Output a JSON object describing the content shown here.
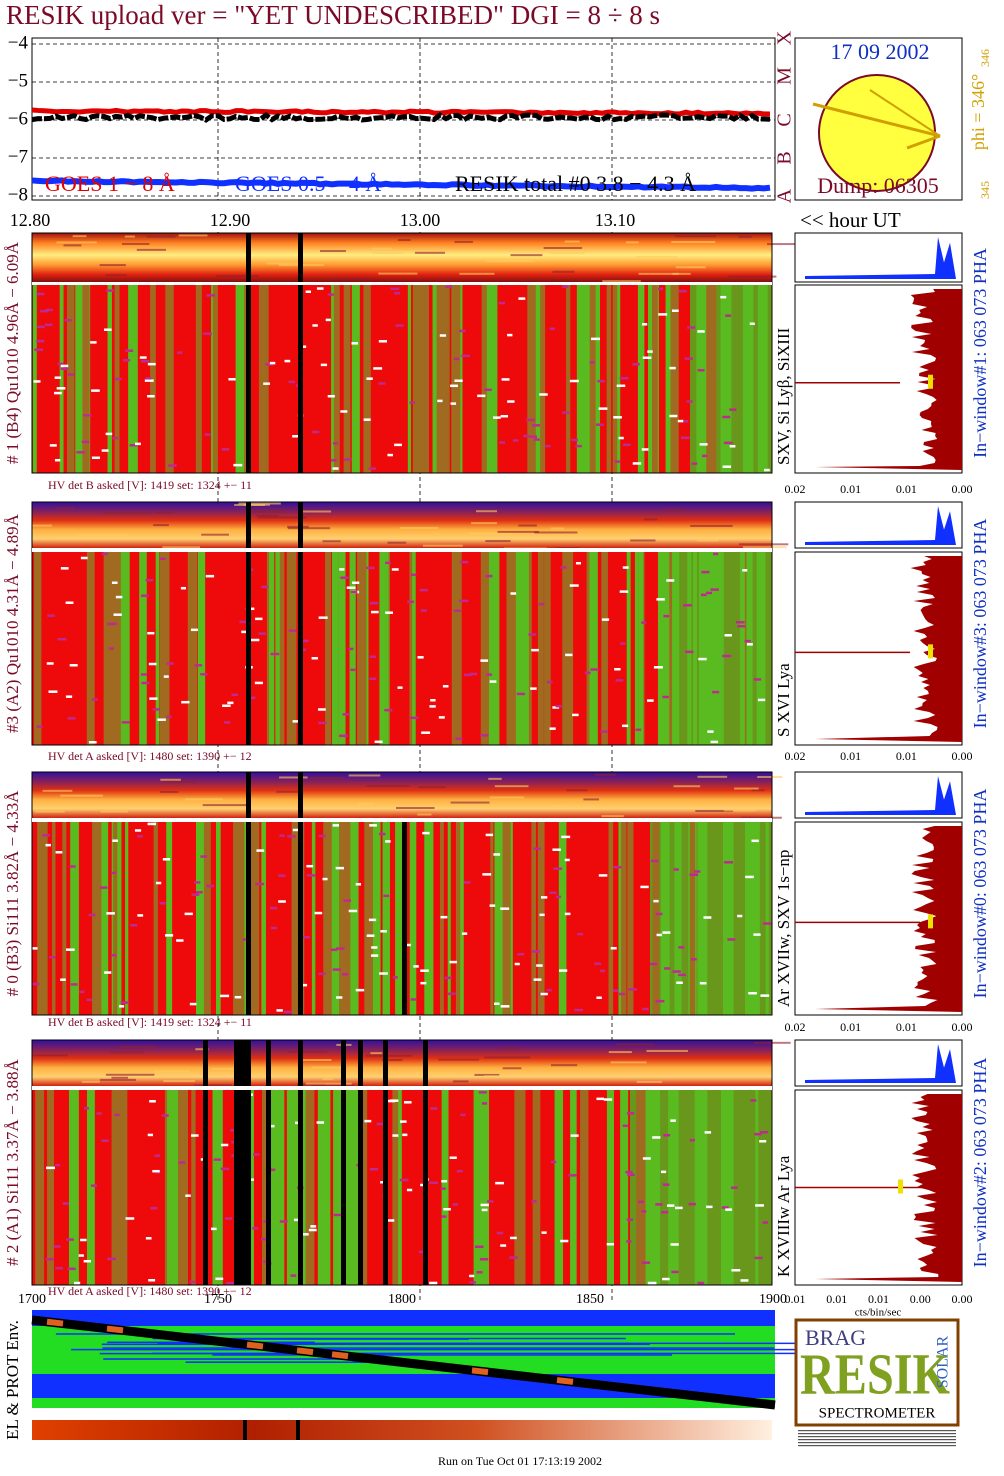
{
  "header": {
    "title": "RESIK upload ver = \"YET UNDESCRIBED\"  DGI =   8 ÷   8 s"
  },
  "goes_plot": {
    "yticks": [
      "−4",
      "−5",
      "−6",
      "−7",
      "−8"
    ],
    "legend": [
      "GOES 1 − 8 Å",
      "GOES 0.5 − 4 Å",
      "RESIK total #0  3.8 − 4.3 Å"
    ],
    "class_labels": [
      "X",
      "M",
      "C",
      "B",
      "A"
    ]
  },
  "sun": {
    "date": "17 09 2002",
    "dump": "Dump: 06305",
    "phi": "phi = 346°",
    "phi_sub": "346",
    "lower": "345"
  },
  "time_axis": {
    "ticks": [
      "12.80",
      "12.90",
      "13.00",
      "13.10"
    ],
    "unit": "<< hour UT"
  },
  "panels": [
    {
      "left_label": "# 1 (B4) Qu1010 4.96Å − 6.09Å",
      "right_label": "SXV, Si Lyβ, SiXIII",
      "hv": "HV det B asked [V]:  1419 set:  1324  +−   11",
      "pha_label": "In−window#1:  063 073 PHA",
      "pha_ticks": [
        "0.02",
        "0.01",
        "0.01",
        "0.00"
      ]
    },
    {
      "left_label": "#3 (A2) Qu1010  4.31Å  − 4.89Å",
      "right_label": "S XVI Lya",
      "hv": "HV det A asked [V]:  1480 set:  1390  +−   12",
      "pha_label": "In−window#3:  063 073 PHA",
      "pha_ticks": [
        "0.02",
        "0.01",
        "0.01",
        "0.00"
      ]
    },
    {
      "left_label": "# 0 (B3) Si111  3.82Å − 4.33Å",
      "right_label": "Ar XVIIw,  SXV 1s−np",
      "hv": "HV det B asked [V]:  1419 set:  1324  +−   11",
      "pha_label": "In−window#0:  063 073 PHA",
      "pha_ticks": [
        "0.02",
        "0.01",
        "0.01",
        "0.00"
      ]
    },
    {
      "left_label": "# 2 (A1) Si111  3.37Å − 3.88Å",
      "right_label": "K XVIIIw  Ar Lya",
      "hv": "HV det A asked [V]:  1480 set:  1390  +−   12",
      "pha_label": "In−window#2:  063 073 PHA",
      "pha_ticks": [
        "0.01",
        "0.01",
        "0.01",
        "0.00",
        "0.00"
      ]
    }
  ],
  "pha_unit": "cts/bin/sec",
  "bottom_axis": {
    "ticks": [
      "1700",
      "1750",
      "1800",
      "1850",
      "1900"
    ]
  },
  "env_label": "EL & PROT Env.",
  "logo": {
    "top": "BRAG",
    "big": "RESIK",
    "side": "SOLAR",
    "bottom": "SPECTROMETER"
  },
  "footer": "Run on Tue Oct 01 17:13:19 2002"
}
